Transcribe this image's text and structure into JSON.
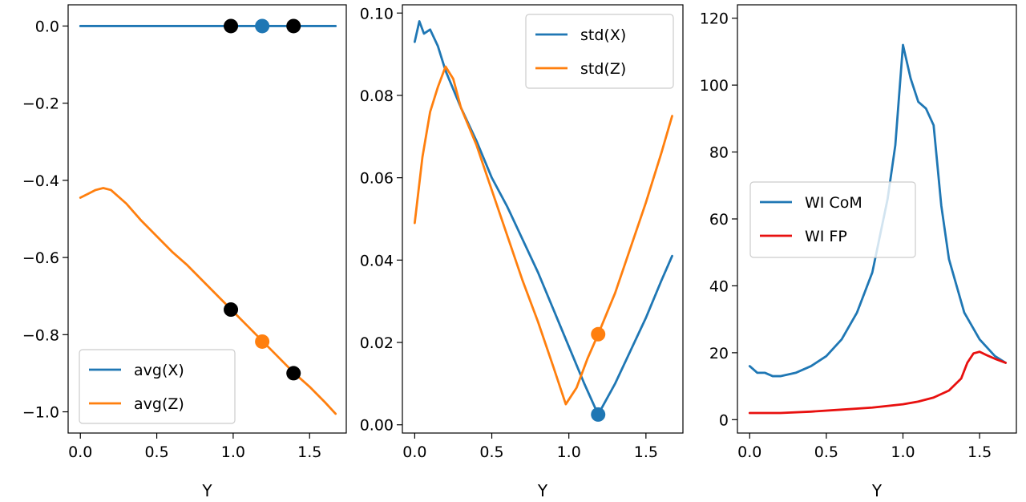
{
  "chart_data": [
    {
      "type": "line",
      "title": "",
      "xlabel": "Y",
      "ylabel": "",
      "xlim": [
        -0.08,
        1.74
      ],
      "ylim": [
        -1.055,
        0.055
      ],
      "xticks": [
        0.0,
        0.5,
        1.0,
        1.5
      ],
      "xtick_labels": [
        "0.0",
        "0.5",
        "1.0",
        "1.5"
      ],
      "yticks": [
        0.0,
        -0.2,
        -0.4,
        -0.6,
        -0.8,
        -1.0
      ],
      "ytick_labels": [
        "0.0",
        "−0.2",
        "−0.4",
        "−0.6",
        "−0.8",
        "−1.0"
      ],
      "grid": false,
      "legend_position": "lower-left",
      "series": [
        {
          "name": "avg(X)",
          "color": "#1f77b4",
          "x": [
            0.0,
            1.67
          ],
          "y": [
            0.0,
            0.0
          ]
        },
        {
          "name": "avg(Z)",
          "color": "#ff7f0e",
          "x": [
            0.0,
            0.05,
            0.1,
            0.15,
            0.2,
            0.3,
            0.4,
            0.5,
            0.6,
            0.7,
            0.8,
            0.9,
            1.0,
            1.1,
            1.2,
            1.3,
            1.4,
            1.5,
            1.6,
            1.67
          ],
          "y": [
            -0.445,
            -0.435,
            -0.425,
            -0.42,
            -0.425,
            -0.46,
            -0.505,
            -0.545,
            -0.585,
            -0.62,
            -0.66,
            -0.7,
            -0.74,
            -0.78,
            -0.82,
            -0.86,
            -0.9,
            -0.935,
            -0.975,
            -1.005
          ]
        }
      ],
      "markers": [
        {
          "x": 0.985,
          "y": 0.0,
          "color": "#000000"
        },
        {
          "x": 1.19,
          "y": 0.0,
          "color": "#1f77b4"
        },
        {
          "x": 1.395,
          "y": 0.0,
          "color": "#000000"
        },
        {
          "x": 0.985,
          "y": -0.735,
          "color": "#000000"
        },
        {
          "x": 1.19,
          "y": -0.818,
          "color": "#ff7f0e"
        },
        {
          "x": 1.395,
          "y": -0.9,
          "color": "#000000"
        }
      ]
    },
    {
      "type": "line",
      "title": "",
      "xlabel": "Y",
      "ylabel": "",
      "xlim": [
        -0.08,
        1.74
      ],
      "ylim": [
        -0.002,
        0.102
      ],
      "xticks": [
        0.0,
        0.5,
        1.0,
        1.5
      ],
      "xtick_labels": [
        "0.0",
        "0.5",
        "1.0",
        "1.5"
      ],
      "yticks": [
        0.0,
        0.02,
        0.04,
        0.06,
        0.08,
        0.1
      ],
      "ytick_labels": [
        "0.00",
        "0.02",
        "0.04",
        "0.06",
        "0.08",
        "0.10"
      ],
      "grid": false,
      "legend_position": "top-right",
      "series": [
        {
          "name": "std(X)",
          "color": "#1f77b4",
          "x": [
            0.0,
            0.03,
            0.06,
            0.1,
            0.15,
            0.2,
            0.3,
            0.4,
            0.5,
            0.6,
            0.7,
            0.8,
            0.9,
            1.0,
            1.1,
            1.19,
            1.3,
            1.4,
            1.5,
            1.6,
            1.67
          ],
          "y": [
            0.093,
            0.098,
            0.095,
            0.096,
            0.092,
            0.086,
            0.077,
            0.069,
            0.06,
            0.053,
            0.045,
            0.037,
            0.028,
            0.019,
            0.01,
            0.0025,
            0.01,
            0.018,
            0.026,
            0.035,
            0.041
          ]
        },
        {
          "name": "std(Z)",
          "color": "#ff7f0e",
          "x": [
            0.0,
            0.05,
            0.1,
            0.15,
            0.2,
            0.25,
            0.3,
            0.4,
            0.5,
            0.6,
            0.7,
            0.8,
            0.9,
            0.98,
            1.05,
            1.12,
            1.19,
            1.3,
            1.4,
            1.5,
            1.6,
            1.67
          ],
          "y": [
            0.049,
            0.065,
            0.076,
            0.082,
            0.087,
            0.084,
            0.077,
            0.068,
            0.057,
            0.046,
            0.035,
            0.025,
            0.014,
            0.005,
            0.009,
            0.016,
            0.022,
            0.032,
            0.043,
            0.054,
            0.066,
            0.075
          ]
        }
      ],
      "markers": [
        {
          "x": 1.19,
          "y": 0.0025,
          "color": "#1f77b4"
        },
        {
          "x": 1.19,
          "y": 0.022,
          "color": "#ff7f0e"
        }
      ]
    },
    {
      "type": "line",
      "title": "",
      "xlabel": "Y",
      "ylabel": "",
      "xlim": [
        -0.08,
        1.74
      ],
      "ylim": [
        -4,
        124
      ],
      "xticks": [
        0.0,
        0.5,
        1.0,
        1.5
      ],
      "xtick_labels": [
        "0.0",
        "0.5",
        "1.0",
        "1.5"
      ],
      "yticks": [
        0,
        20,
        40,
        60,
        80,
        100,
        120
      ],
      "ytick_labels": [
        "0",
        "20",
        "40",
        "60",
        "80",
        "100",
        "120"
      ],
      "grid": false,
      "legend_position": "center-left",
      "series": [
        {
          "name": "WI CoM",
          "color": "#1f77b4",
          "x": [
            0.0,
            0.05,
            0.1,
            0.15,
            0.2,
            0.3,
            0.4,
            0.5,
            0.6,
            0.7,
            0.8,
            0.9,
            0.95,
            1.0,
            1.05,
            1.1,
            1.15,
            1.2,
            1.25,
            1.3,
            1.4,
            1.5,
            1.6,
            1.67
          ],
          "y": [
            16,
            14,
            14,
            13,
            13,
            14,
            16,
            19,
            24,
            32,
            44,
            66,
            82,
            112,
            102,
            95,
            93,
            88,
            64,
            48,
            32,
            24,
            19,
            17
          ]
        },
        {
          "name": "WI FP",
          "color": "#e8100f",
          "x": [
            0.0,
            0.2,
            0.4,
            0.6,
            0.8,
            1.0,
            1.1,
            1.2,
            1.3,
            1.38,
            1.42,
            1.46,
            1.5,
            1.55,
            1.6,
            1.67
          ],
          "y": [
            2,
            2,
            2.4,
            3,
            3.6,
            4.6,
            5.4,
            6.6,
            8.7,
            12.3,
            17,
            19.8,
            20.3,
            19.2,
            18.2,
            17
          ]
        }
      ],
      "markers": []
    }
  ]
}
